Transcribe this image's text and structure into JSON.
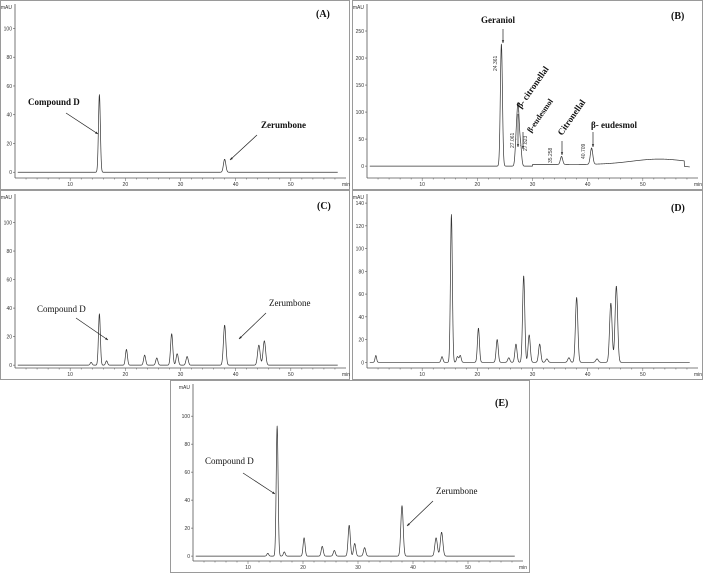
{
  "chart_data": [
    {
      "id": "A",
      "type": "line",
      "title": "(A)",
      "xlabel": "min",
      "ylabel": "mAU",
      "xlim": [
        0,
        60
      ],
      "ylim": [
        -4,
        117
      ],
      "xticks": [
        10,
        20,
        30,
        40,
        50
      ],
      "yticks": [
        0,
        20,
        40,
        60,
        80,
        100
      ],
      "peaks": [
        {
          "x": 15.3,
          "y": 54
        },
        {
          "x": 38.0,
          "y": 9
        }
      ],
      "annotations": [
        {
          "text": "Compound D",
          "x": 15.3
        },
        {
          "text": "Zerumbone",
          "x": 38.0
        }
      ]
    },
    {
      "id": "B",
      "type": "line",
      "title": "(B)",
      "xlabel": "min",
      "ylabel": "mAU",
      "xlim": [
        0,
        60
      ],
      "ylim": [
        -22,
        300
      ],
      "xticks": [
        10,
        20,
        30,
        40,
        50
      ],
      "yticks": [
        0,
        50,
        100,
        150,
        200,
        250
      ],
      "peaks": [
        {
          "x": 24.361,
          "y": 226
        },
        {
          "x": 27.061,
          "y": 50
        },
        {
          "x": 27.4,
          "y": 102
        },
        {
          "x": 27.823,
          "y": 38
        },
        {
          "x": 35.258,
          "y": 15
        },
        {
          "x": 40.709,
          "y": 30
        }
      ],
      "retention_labels": [
        "24.361",
        "27.061",
        "27.823",
        "35.258",
        "40.709"
      ],
      "annotations": [
        {
          "text": "Geraniol",
          "x": 24.361
        },
        {
          "text": "β- citronellal",
          "x": 27.4
        },
        {
          "text": "β-eudesmol",
          "x": 27.823
        },
        {
          "text": "Citronellal",
          "x": 35.258
        },
        {
          "text": "β- eudesmol",
          "x": 40.709
        }
      ]
    },
    {
      "id": "C",
      "type": "line",
      "title": "(C)",
      "xlabel": "min",
      "ylabel": "mAU",
      "xlim": [
        0,
        60
      ],
      "ylim": [
        -2,
        120
      ],
      "xticks": [
        10,
        20,
        30,
        40,
        50
      ],
      "yticks": [
        0,
        20,
        40,
        60,
        80,
        100
      ],
      "peaks": [
        {
          "x": 13.8,
          "y": 2
        },
        {
          "x": 15.3,
          "y": 36
        },
        {
          "x": 16.6,
          "y": 3
        },
        {
          "x": 20.2,
          "y": 11
        },
        {
          "x": 23.5,
          "y": 7
        },
        {
          "x": 25.7,
          "y": 5
        },
        {
          "x": 28.4,
          "y": 22
        },
        {
          "x": 29.4,
          "y": 8
        },
        {
          "x": 31.2,
          "y": 6
        },
        {
          "x": 38.0,
          "y": 28
        },
        {
          "x": 44.2,
          "y": 14
        },
        {
          "x": 45.2,
          "y": 17
        }
      ],
      "annotations": [
        {
          "text": "Compound D",
          "x": 15.3
        },
        {
          "text": "Zerumbone",
          "x": 38.0
        }
      ]
    },
    {
      "id": "D",
      "type": "line",
      "title": "(D)",
      "xlabel": "min",
      "ylabel": "mAU",
      "xlim": [
        0,
        60
      ],
      "ylim": [
        -5,
        148
      ],
      "xticks": [
        10,
        20,
        30,
        40,
        50
      ],
      "yticks": [
        0,
        20,
        40,
        60,
        80,
        100,
        120,
        140
      ],
      "peaks": [
        {
          "x": 1.6,
          "y": 6
        },
        {
          "x": 13.6,
          "y": 5
        },
        {
          "x": 15.3,
          "y": 130
        },
        {
          "x": 16.4,
          "y": 5
        },
        {
          "x": 16.9,
          "y": 6
        },
        {
          "x": 20.2,
          "y": 30
        },
        {
          "x": 23.6,
          "y": 20
        },
        {
          "x": 25.7,
          "y": 4
        },
        {
          "x": 27.0,
          "y": 16
        },
        {
          "x": 28.4,
          "y": 76
        },
        {
          "x": 29.4,
          "y": 24
        },
        {
          "x": 31.3,
          "y": 16
        },
        {
          "x": 32.6,
          "y": 3
        },
        {
          "x": 36.6,
          "y": 4
        },
        {
          "x": 38.0,
          "y": 57
        },
        {
          "x": 41.7,
          "y": 3
        },
        {
          "x": 44.2,
          "y": 52
        },
        {
          "x": 45.2,
          "y": 67
        }
      ],
      "annotations": []
    },
    {
      "id": "E",
      "type": "line",
      "title": "(E)",
      "xlabel": "min",
      "ylabel": "mAU",
      "xlim": [
        0,
        60
      ],
      "ylim": [
        -3.5,
        123
      ],
      "xticks": [
        10,
        20,
        30,
        40,
        50
      ],
      "yticks": [
        0,
        20,
        40,
        60,
        80,
        100
      ],
      "peaks": [
        {
          "x": 13.6,
          "y": 2
        },
        {
          "x": 15.3,
          "y": 93
        },
        {
          "x": 16.6,
          "y": 3
        },
        {
          "x": 20.2,
          "y": 13
        },
        {
          "x": 23.5,
          "y": 7
        },
        {
          "x": 25.7,
          "y": 4
        },
        {
          "x": 28.4,
          "y": 22
        },
        {
          "x": 29.4,
          "y": 9
        },
        {
          "x": 31.2,
          "y": 6
        },
        {
          "x": 38.0,
          "y": 36
        },
        {
          "x": 44.2,
          "y": 13
        },
        {
          "x": 45.2,
          "y": 17
        }
      ],
      "annotations": [
        {
          "text": "Compound D",
          "x": 15.3
        },
        {
          "text": "Zerumbone",
          "x": 38.0
        }
      ]
    }
  ]
}
